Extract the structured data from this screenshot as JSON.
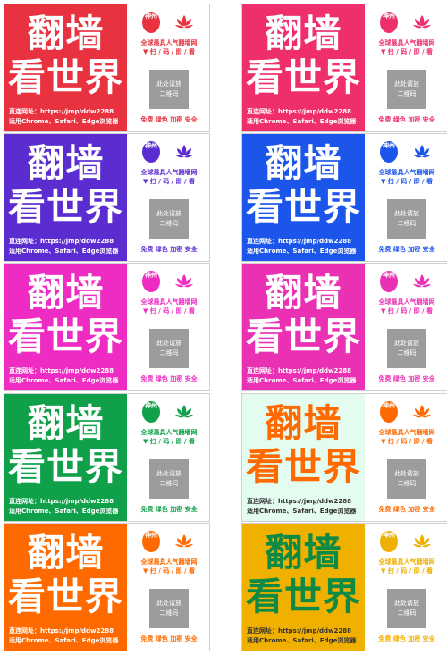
{
  "common": {
    "headline_line1": "翻墙",
    "headline_line2": "看世界",
    "url_label": "直连网址：https://jmp/ddw2288",
    "browsers": "适用Chrome、Safari、Edge浏览器",
    "seal_text": "神州",
    "tagline": "全球最具人气翻墙网",
    "scan_cta": "▼ 扫 / 码 / 即 / 看",
    "qr_placeholder_line1": "此处请放",
    "qr_placeholder_line2": "二维码",
    "features": "免费 绿色 加密 安全"
  },
  "cards": [
    {
      "panel_bg": "#e8323f",
      "headline_color": "#ffffff",
      "text_color": "#ffffff",
      "accent": "#e8323f"
    },
    {
      "panel_bg": "#ee2f6c",
      "headline_color": "#ffffff",
      "text_color": "#ffffff",
      "accent": "#ee2f6c"
    },
    {
      "panel_bg": "#5b2dd1",
      "headline_color": "#ffffff",
      "text_color": "#ffffff",
      "accent": "#5b2dd1"
    },
    {
      "panel_bg": "#1c55ea",
      "headline_color": "#ffffff",
      "text_color": "#ffffff",
      "accent": "#1c55ea"
    },
    {
      "panel_bg": "#ee2bc3",
      "headline_color": "#ffffff",
      "text_color": "#ffffff",
      "accent": "#ee2bc3"
    },
    {
      "panel_bg": "#ea31b4",
      "headline_color": "#ffffff",
      "text_color": "#ffffff",
      "accent": "#ea31b4"
    },
    {
      "panel_bg": "#10a04a",
      "headline_color": "#ffffff",
      "text_color": "#ffffff",
      "accent": "#10a04a"
    },
    {
      "panel_bg": "#e4fbf0",
      "headline_color": "#ff6a00",
      "text_color": "#333333",
      "accent": "#ff6a00"
    },
    {
      "panel_bg": "#ff6a00",
      "headline_color": "#ffffff",
      "text_color": "#ffffff",
      "accent": "#ff6a00"
    },
    {
      "panel_bg": "#f0b000",
      "headline_color": "#0f8a45",
      "text_color": "#333333",
      "accent": "#f0b000"
    }
  ]
}
